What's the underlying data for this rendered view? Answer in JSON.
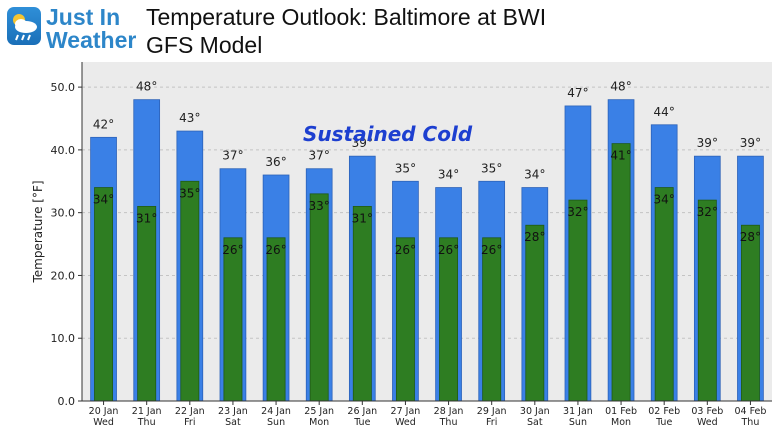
{
  "logo": {
    "line1": "Just In",
    "line2": "Weather"
  },
  "title_line1": "Temperature Outlook: Baltimore at BWI",
  "title_line2": "GFS Model",
  "annotation": "Sustained Cold",
  "colors": {
    "high": "#3a80e6",
    "low": "#2e7d22",
    "plot_bg": "#ebebeb",
    "annotation": "#1d3fd0",
    "logo": "#2d86c9"
  },
  "chart_data": {
    "type": "bar",
    "title": "Temperature Outlook: Baltimore at BWI",
    "subtitle": "GFS Model",
    "xlabel": "",
    "ylabel": "Temperature [°F]",
    "ylim": [
      0,
      54
    ],
    "yticks": [
      "0.0",
      "10.0",
      "20.0",
      "30.0",
      "40.0",
      "50.0"
    ],
    "grid": true,
    "categories": [
      [
        "20 Jan",
        "Wed"
      ],
      [
        "21 Jan",
        "Thu"
      ],
      [
        "22 Jan",
        "Fri"
      ],
      [
        "23 Jan",
        "Sat"
      ],
      [
        "24 Jan",
        "Sun"
      ],
      [
        "25 Jan",
        "Mon"
      ],
      [
        "26 Jan",
        "Tue"
      ],
      [
        "27 Jan",
        "Wed"
      ],
      [
        "28 Jan",
        "Thu"
      ],
      [
        "29 Jan",
        "Fri"
      ],
      [
        "30 Jan",
        "Sat"
      ],
      [
        "31 Jan",
        "Sun"
      ],
      [
        "01 Feb",
        "Mon"
      ],
      [
        "02 Feb",
        "Tue"
      ],
      [
        "03 Feb",
        "Wed"
      ],
      [
        "04 Feb",
        "Thu"
      ]
    ],
    "series": [
      {
        "values": [
          42,
          48,
          43,
          37,
          36,
          37,
          39,
          35,
          34,
          35,
          34,
          47,
          48,
          44,
          39,
          39
        ],
        "labels": [
          "42°",
          "48°",
          "43°",
          "37°",
          "36°",
          "37°",
          "39°",
          "35°",
          "34°",
          "35°",
          "34°",
          "47°",
          "48°",
          "44°",
          "39°",
          "39°"
        ]
      },
      {
        "values": [
          34,
          31,
          35,
          26,
          26,
          33,
          31,
          26,
          26,
          26,
          28,
          32,
          41,
          34,
          32,
          28
        ],
        "labels": [
          "34°",
          "31°",
          "35°",
          "26°",
          "26°",
          "33°",
          "31°",
          "26°",
          "26°",
          "26°",
          "28°",
          "32°",
          "41°",
          "34°",
          "32°",
          "28°"
        ]
      }
    ]
  }
}
